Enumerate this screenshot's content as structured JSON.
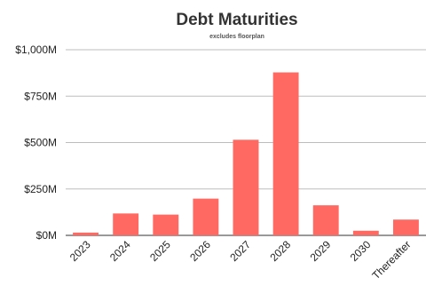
{
  "chart_data": {
    "type": "bar",
    "title": "Debt Maturities",
    "subtitle": "excludes floorplan",
    "xlabel": "",
    "ylabel": "",
    "categories": [
      "2023",
      "2024",
      "2025",
      "2026",
      "2027",
      "2028",
      "2029",
      "2030",
      "Thereafter"
    ],
    "values": [
      15,
      118,
      112,
      198,
      515,
      878,
      162,
      25,
      85
    ],
    "unit": "$M",
    "ylim": [
      0,
      1000
    ],
    "yticks": [
      0,
      250,
      500,
      750,
      1000
    ],
    "ytick_labels": [
      "$0M",
      "$250M",
      "$500M",
      "$750M",
      "$1,000M"
    ],
    "grid": true,
    "legend": "none",
    "bar_color": "#ff6961"
  }
}
